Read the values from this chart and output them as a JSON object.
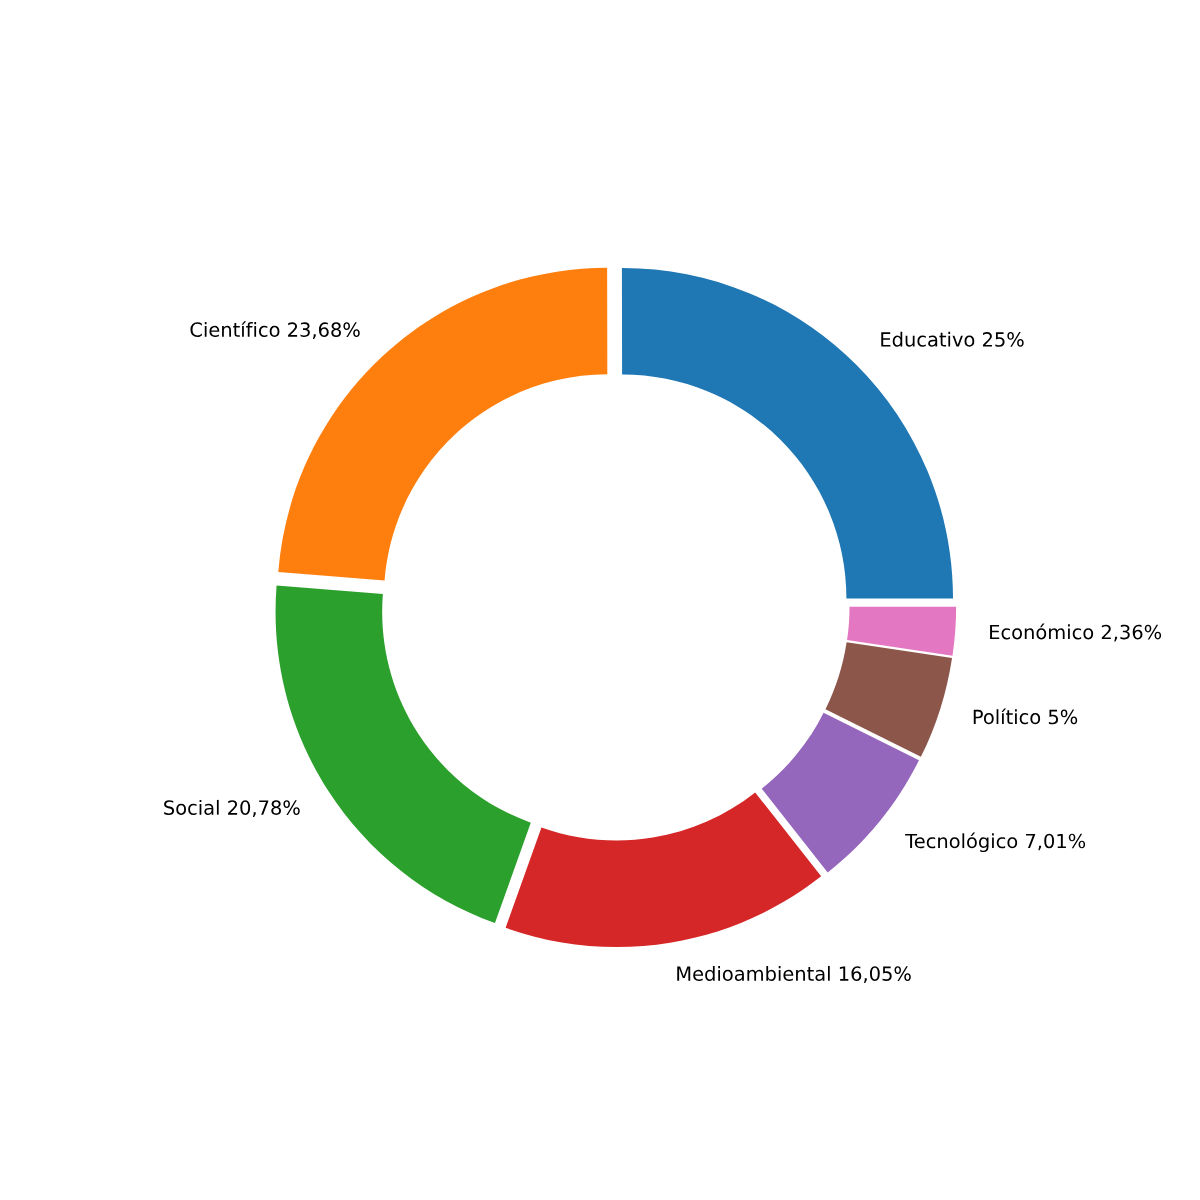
{
  "chart_data": {
    "type": "donut",
    "categories": [
      "Educativo",
      "Científico",
      "Social",
      "Medioambiental",
      "Tecnológico",
      "Político",
      "Económico"
    ],
    "values": [
      25,
      23.68,
      20.78,
      16.05,
      7.01,
      5,
      2.36
    ],
    "value_labels": [
      "25%",
      "23,68%",
      "20,78%",
      "16,05%",
      "7,01%",
      "5%",
      "2,36%"
    ],
    "colors": [
      "#1f77b4",
      "#ff7f0e",
      "#2ca02c",
      "#d62728",
      "#9467bd",
      "#8c564b",
      "#e377c2"
    ]
  }
}
